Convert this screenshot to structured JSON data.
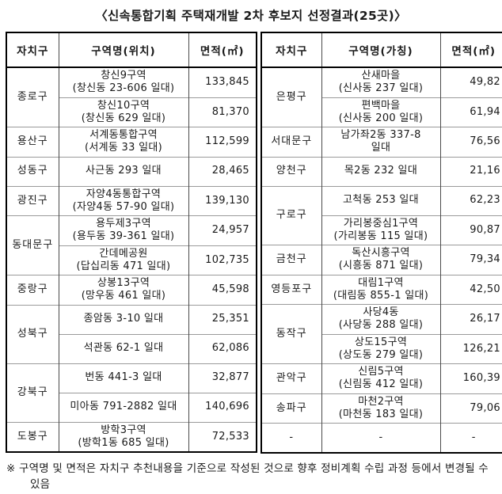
{
  "title": "〈신속통합기획 주택재개발 2차 후보지 선정결과(25곳)〉",
  "left_table": {
    "headers": [
      "자치구",
      "구역명(위치)",
      "면적(㎡)"
    ],
    "groups": [
      {
        "district": "종로구",
        "rows": [
          {
            "zone": [
              "창신9구역",
              "(창신동 23-606 일대)"
            ],
            "area": "133,845"
          },
          {
            "zone": [
              "창신10구역",
              "(창신동 629 일대)"
            ],
            "area": "81,370"
          }
        ]
      },
      {
        "district": "용산구",
        "rows": [
          {
            "zone": [
              "서계동통합구역",
              "(서계동 33 일대)"
            ],
            "area": "112,599"
          }
        ]
      },
      {
        "district": "성동구",
        "rows": [
          {
            "zone": [
              "사근동 293 일대"
            ],
            "area": "28,465"
          }
        ]
      },
      {
        "district": "광진구",
        "rows": [
          {
            "zone": [
              "자양4동통합구역",
              "(자양4동 57-90 일대)"
            ],
            "area": "139,130"
          }
        ]
      },
      {
        "district": "동대문구",
        "rows": [
          {
            "zone": [
              "용두제3구역",
              "(용두동 39-361 일대)"
            ],
            "area": "24,957"
          },
          {
            "zone": [
              "간데메공원",
              "(답십리동 471 일대)"
            ],
            "area": "102,735"
          }
        ]
      },
      {
        "district": "중랑구",
        "rows": [
          {
            "zone": [
              "상봉13구역",
              "(망우동 461 일대)"
            ],
            "area": "45,598"
          }
        ]
      },
      {
        "district": "성북구",
        "rows": [
          {
            "zone": [
              "종암동 3-10 일대"
            ],
            "area": "25,351"
          },
          {
            "zone": [
              "석관동 62-1 일대"
            ],
            "area": "62,086"
          }
        ]
      },
      {
        "district": "강북구",
        "rows": [
          {
            "zone": [
              "번동 441-3 일대"
            ],
            "area": "32,877"
          },
          {
            "zone": [
              "미아동 791-2882 일대"
            ],
            "area": "140,696"
          }
        ]
      },
      {
        "district": "도봉구",
        "rows": [
          {
            "zone": [
              "방학3구역",
              "(방학1동 685 일대)"
            ],
            "area": "72,533"
          }
        ]
      }
    ]
  },
  "right_table": {
    "headers": [
      "자치구",
      "구역명(가칭)",
      "면적(㎡)"
    ],
    "groups": [
      {
        "district": "은평구",
        "rows": [
          {
            "zone": [
              "산새마을",
              "(신사동 237 일대)"
            ],
            "area": "49,82"
          },
          {
            "zone": [
              "편백마을",
              "(신사동 200 일대)"
            ],
            "area": "61,94"
          }
        ]
      },
      {
        "district": "서대문구",
        "rows": [
          {
            "zone": [
              "남가좌2동 337-8",
              "일대"
            ],
            "area": "76,56"
          }
        ]
      },
      {
        "district": "양천구",
        "rows": [
          {
            "zone": [
              "목2동 232 일대"
            ],
            "area": "21,16"
          }
        ]
      },
      {
        "district": "구로구",
        "rows": [
          {
            "zone": [
              "고척동 253 일대"
            ],
            "area": "62,23"
          },
          {
            "zone": [
              "가리봉중심1구역",
              "(가리봉동 115 일대)"
            ],
            "area": "90,87"
          }
        ]
      },
      {
        "district": "금천구",
        "rows": [
          {
            "zone": [
              "독산시흥구역",
              "(시흥동 871 일대)"
            ],
            "area": "79,34"
          }
        ]
      },
      {
        "district": "영등포구",
        "rows": [
          {
            "zone": [
              "대림1구역",
              "(대림동 855-1 일대)"
            ],
            "area": "42,50"
          }
        ]
      },
      {
        "district": "동작구",
        "rows": [
          {
            "zone": [
              "사당4동",
              "(사당동 288 일대)"
            ],
            "area": "26,17"
          },
          {
            "zone": [
              "상도15구역",
              "(상도동 279 일대)"
            ],
            "area": "126,21"
          }
        ]
      },
      {
        "district": "관악구",
        "rows": [
          {
            "zone": [
              "신림5구역",
              "(신림동 412 일대)"
            ],
            "area": "160,39"
          }
        ]
      },
      {
        "district": "송파구",
        "rows": [
          {
            "zone": [
              "마천2구역",
              "(마천동 183 일대)"
            ],
            "area": "79,06"
          }
        ]
      },
      {
        "district": "-",
        "rows": [
          {
            "zone": [
              "-"
            ],
            "area": "-"
          }
        ]
      }
    ]
  },
  "footnote_lines": [
    "※ 구역명 및 면적은 자치구 추천내용을 기준으로 작성된 것으로 향후 정비계획 수립 과정 등에서 변경될 수",
    "있음"
  ]
}
